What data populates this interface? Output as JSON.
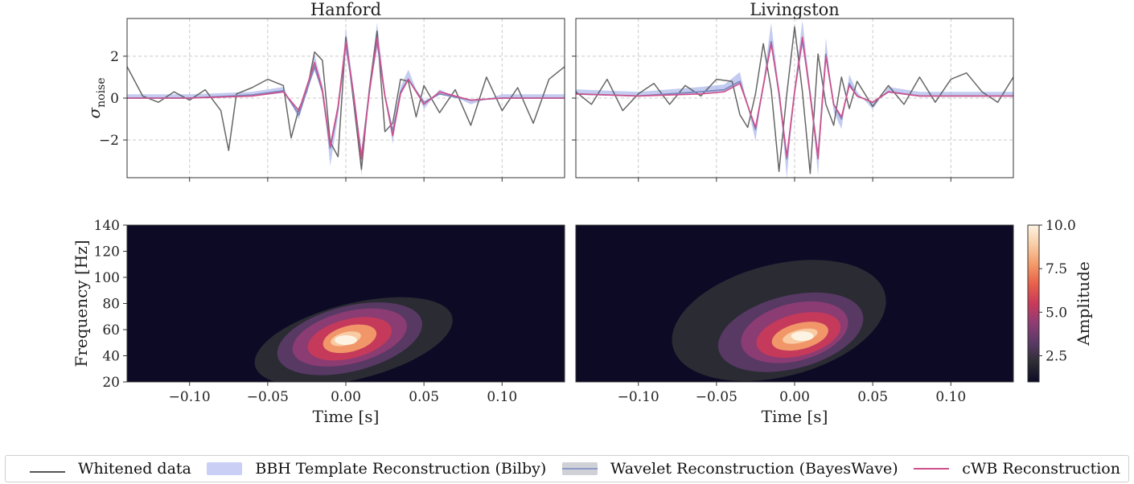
{
  "chart_data": [
    {
      "type": "line",
      "title": "Hanford",
      "ylabel": "σ",
      "ylabel_sub": "noise",
      "xlim": [
        -0.14,
        0.14
      ],
      "ylim": [
        -3.8,
        3.8
      ],
      "yticks": [
        2,
        0,
        -2
      ],
      "ytick_labels": [
        "2",
        "0",
        "−2"
      ],
      "grid": true,
      "series": [
        {
          "name": "Whitened data",
          "color": "#555555",
          "x": [
            -0.14,
            -0.13,
            -0.12,
            -0.11,
            -0.1,
            -0.09,
            -0.08,
            -0.075,
            -0.07,
            -0.06,
            -0.05,
            -0.04,
            -0.035,
            -0.03,
            -0.025,
            -0.02,
            -0.015,
            -0.01,
            -0.005,
            0,
            0.005,
            0.01,
            0.015,
            0.02,
            0.025,
            0.03,
            0.035,
            0.04,
            0.045,
            0.05,
            0.06,
            0.07,
            0.08,
            0.09,
            0.1,
            0.11,
            0.12,
            0.13,
            0.14
          ],
          "y": [
            1.5,
            0.1,
            -0.2,
            0.3,
            -0.1,
            0.4,
            -0.6,
            -2.5,
            0.2,
            0.5,
            0.9,
            0.6,
            -1.9,
            -0.5,
            0.3,
            2.2,
            1.8,
            -2.1,
            -2.8,
            2.9,
            -0.2,
            -3.4,
            0.4,
            3.2,
            -1.6,
            -1.2,
            0.9,
            0.8,
            -0.9,
            0.6,
            -0.7,
            0.4,
            -1.3,
            1.0,
            -0.6,
            0.5,
            -1.2,
            0.9,
            1.5
          ]
        },
        {
          "name": "BBH Template Reconstruction (Bilby)",
          "color": "#aab6ea",
          "x": [
            -0.14,
            -0.1,
            -0.06,
            -0.04,
            -0.03,
            -0.02,
            -0.015,
            -0.01,
            -0.005,
            0,
            0.005,
            0.01,
            0.015,
            0.02,
            0.025,
            0.03,
            0.035,
            0.04,
            0.05,
            0.06,
            0.08,
            0.1,
            0.14
          ],
          "y": [
            0,
            0,
            0.1,
            0.3,
            -0.7,
            1.6,
            0.4,
            -2.6,
            -0.6,
            2.7,
            0.2,
            -3.0,
            0.3,
            2.9,
            0.1,
            -1.7,
            0.3,
            1.0,
            -0.3,
            0.2,
            -0.1,
            0,
            0
          ]
        },
        {
          "name": "Wavelet Reconstruction (BayesWave)",
          "color": "#7d88c0",
          "x": [
            -0.14,
            -0.1,
            -0.06,
            -0.04,
            -0.03,
            -0.02,
            -0.015,
            -0.01,
            -0.005,
            0,
            0.005,
            0.01,
            0.015,
            0.02,
            0.025,
            0.03,
            0.035,
            0.04,
            0.05,
            0.06,
            0.08,
            0.1,
            0.14
          ],
          "y": [
            0,
            0,
            0.15,
            0.35,
            -0.8,
            1.5,
            0.3,
            -2.4,
            -0.5,
            2.6,
            0.1,
            -2.8,
            0.3,
            2.7,
            0.1,
            -1.6,
            0.3,
            0.9,
            -0.2,
            0.2,
            -0.1,
            0,
            0
          ]
        },
        {
          "name": "cWB Reconstruction",
          "color": "#cf4f8a",
          "x": [
            -0.14,
            -0.1,
            -0.06,
            -0.04,
            -0.03,
            -0.02,
            -0.015,
            -0.01,
            -0.005,
            0,
            0.005,
            0.01,
            0.015,
            0.02,
            0.025,
            0.03,
            0.035,
            0.04,
            0.05,
            0.06,
            0.08,
            0.1,
            0.14
          ],
          "y": [
            0,
            0,
            0.1,
            0.3,
            -0.6,
            1.7,
            0.4,
            -2.3,
            -0.4,
            2.7,
            0.2,
            -2.9,
            0.2,
            2.9,
            0.1,
            -1.8,
            0.2,
            0.9,
            -0.3,
            0.3,
            -0.1,
            0,
            0
          ]
        }
      ]
    },
    {
      "type": "line",
      "title": "Livingston",
      "xlim": [
        -0.14,
        0.14
      ],
      "ylim": [
        -3.8,
        3.8
      ],
      "grid": true,
      "series": [
        {
          "name": "Whitened data",
          "color": "#555555",
          "x": [
            -0.14,
            -0.13,
            -0.12,
            -0.11,
            -0.1,
            -0.09,
            -0.08,
            -0.07,
            -0.06,
            -0.05,
            -0.04,
            -0.035,
            -0.03,
            -0.025,
            -0.02,
            -0.015,
            -0.01,
            -0.005,
            0,
            0.005,
            0.01,
            0.015,
            0.02,
            0.025,
            0.03,
            0.035,
            0.04,
            0.05,
            0.06,
            0.07,
            0.08,
            0.09,
            0.1,
            0.11,
            0.12,
            0.13,
            0.14
          ],
          "y": [
            0.3,
            -0.3,
            0.9,
            -0.6,
            0.2,
            0.7,
            -0.3,
            0.6,
            0.1,
            0.9,
            0.8,
            -0.8,
            -1.4,
            0.2,
            2.6,
            0.4,
            -3.5,
            0.2,
            3.4,
            0.3,
            -3.6,
            2.1,
            -0.3,
            -1.3,
            1.0,
            -0.5,
            0.8,
            -0.4,
            0.6,
            -0.3,
            1.0,
            -0.2,
            0.9,
            1.2,
            0.3,
            -0.2,
            1.0
          ]
        },
        {
          "name": "BBH Template Reconstruction (Bilby)",
          "color": "#aab6ea",
          "x": [
            -0.14,
            -0.1,
            -0.06,
            -0.045,
            -0.035,
            -0.025,
            -0.015,
            -0.01,
            -0.005,
            0,
            0.005,
            0.01,
            0.015,
            0.02,
            0.025,
            0.03,
            0.035,
            0.04,
            0.05,
            0.06,
            0.08,
            0.1,
            0.14
          ],
          "y": [
            0.2,
            0.1,
            0.3,
            0.4,
            0.9,
            -1.6,
            2.9,
            0.2,
            -3.1,
            0.3,
            3.0,
            0.2,
            -3.0,
            2.3,
            -0.4,
            -1.1,
            0.8,
            0.1,
            -0.3,
            0.3,
            0.1,
            0.1,
            0.1
          ]
        },
        {
          "name": "Wavelet Reconstruction (BayesWave)",
          "color": "#7d88c0",
          "x": [
            -0.14,
            -0.1,
            -0.06,
            -0.045,
            -0.035,
            -0.025,
            -0.015,
            -0.01,
            -0.005,
            0,
            0.005,
            0.01,
            0.015,
            0.02,
            0.025,
            0.03,
            0.035,
            0.04,
            0.05,
            0.06,
            0.08,
            0.1,
            0.14
          ],
          "y": [
            0.2,
            0.1,
            0.3,
            0.4,
            0.8,
            -1.5,
            2.7,
            0.2,
            -2.9,
            0.3,
            2.8,
            0.2,
            -2.8,
            2.1,
            -0.3,
            -1.0,
            0.7,
            0.1,
            -0.2,
            0.3,
            0.1,
            0.1,
            0.1
          ]
        },
        {
          "name": "cWB Reconstruction",
          "color": "#cf4f8a",
          "x": [
            -0.14,
            -0.1,
            -0.06,
            -0.045,
            -0.035,
            -0.025,
            -0.015,
            -0.01,
            -0.005,
            0,
            0.005,
            0.01,
            0.015,
            0.02,
            0.025,
            0.03,
            0.035,
            0.04,
            0.05,
            0.06,
            0.08,
            0.1,
            0.14
          ],
          "y": [
            0.2,
            0.1,
            0.2,
            0.3,
            0.7,
            -1.4,
            2.6,
            0.3,
            -2.8,
            0.3,
            2.9,
            0.1,
            -2.9,
            2.0,
            -0.3,
            -0.9,
            0.6,
            0.1,
            -0.2,
            0.3,
            0.1,
            0.1,
            0.1
          ]
        }
      ]
    },
    {
      "type": "heatmap",
      "detector": "Hanford",
      "xlabel": "Time [s]",
      "ylabel": "Frequency [Hz]",
      "xlim": [
        -0.14,
        0.14
      ],
      "ylim": [
        20,
        140
      ],
      "xticks": [
        -0.1,
        -0.05,
        0.0,
        0.05,
        0.1
      ],
      "xtick_labels": [
        "−0.10",
        "−0.05",
        "0.00",
        "0.05",
        "0.10"
      ],
      "yticks": [
        20,
        40,
        60,
        80,
        100,
        120,
        140
      ],
      "ytick_labels": [
        "20",
        "40",
        "60",
        "80",
        "100",
        "120",
        "140"
      ],
      "peak": {
        "time": 0.0,
        "frequency": 52,
        "amplitude": 10.0
      },
      "regions": [
        {
          "level": 1.6,
          "t": [
            -0.06,
            0.07
          ],
          "f": [
            22,
            80
          ]
        },
        {
          "level": 3.0,
          "t": [
            -0.045,
            0.05
          ],
          "f": [
            28,
            78
          ]
        },
        {
          "level": 4.5,
          "t": [
            -0.035,
            0.04
          ],
          "f": [
            34,
            74
          ]
        },
        {
          "level": 6.0,
          "t": [
            -0.025,
            0.03
          ],
          "f": [
            38,
            68
          ]
        },
        {
          "level": 7.5,
          "t": [
            -0.015,
            0.02
          ],
          "f": [
            43,
            63
          ]
        },
        {
          "level": 9.0,
          "t": [
            -0.01,
            0.01
          ],
          "f": [
            48,
            58
          ]
        }
      ]
    },
    {
      "type": "heatmap",
      "detector": "Livingston",
      "xlabel": "Time [s]",
      "xlim": [
        -0.14,
        0.14
      ],
      "ylim": [
        20,
        140
      ],
      "xticks": [
        -0.1,
        -0.05,
        0.0,
        0.05,
        0.1
      ],
      "xtick_labels": [
        "−0.10",
        "−0.05",
        "0.00",
        "0.05",
        "0.10"
      ],
      "peak": {
        "time": 0.005,
        "frequency": 55,
        "amplitude": 10.0
      },
      "regions": [
        {
          "level": 1.6,
          "t": [
            -0.08,
            0.06
          ],
          "f": [
            24,
            110
          ]
        },
        {
          "level": 3.0,
          "t": [
            -0.05,
            0.045
          ],
          "f": [
            30,
            86
          ]
        },
        {
          "level": 4.5,
          "t": [
            -0.035,
            0.035
          ],
          "f": [
            36,
            80
          ]
        },
        {
          "level": 6.0,
          "t": [
            -0.025,
            0.03
          ],
          "f": [
            40,
            72
          ]
        },
        {
          "level": 7.5,
          "t": [
            -0.015,
            0.022
          ],
          "f": [
            45,
            65
          ]
        },
        {
          "level": 9.0,
          "t": [
            -0.008,
            0.015
          ],
          "f": [
            50,
            60
          ]
        }
      ]
    }
  ],
  "colorbar": {
    "label": "Amplitude",
    "range": [
      1.0,
      10.0
    ],
    "ticks": [
      2.5,
      5.0,
      7.5,
      10.0
    ],
    "tick_labels": [
      "2.5",
      "5.0",
      "7.5",
      "10.0"
    ]
  },
  "colors": {
    "heatmap_background": "#0d0a26",
    "colormap": [
      "#0d0a26",
      "#2d2d34",
      "#5a3a66",
      "#8e3c74",
      "#c83a5a",
      "#e8604a",
      "#f39a6a",
      "#f8cda6",
      "#fdf3e2"
    ]
  },
  "legend": {
    "items": [
      {
        "label": "Whitened data",
        "icon": "line-swatch-icon"
      },
      {
        "label": "BBH Template Reconstruction (Bilby)",
        "icon": "band-swatch-icon"
      },
      {
        "label": "Wavelet Reconstruction (BayesWave)",
        "icon": "band-line-swatch-icon"
      },
      {
        "label": "cWB Reconstruction",
        "icon": "line-swatch-icon"
      }
    ]
  }
}
